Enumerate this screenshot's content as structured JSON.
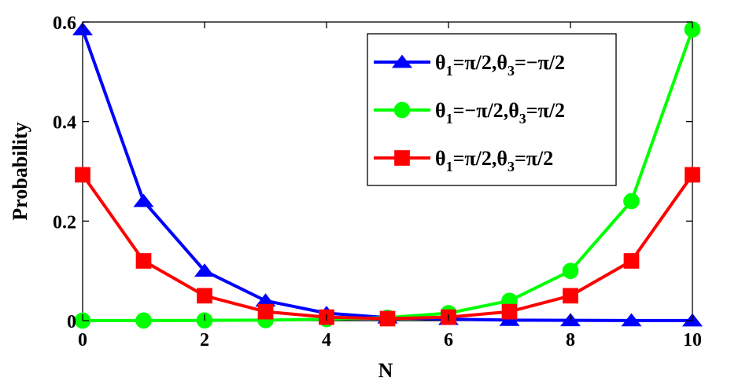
{
  "chart_data": {
    "type": "line",
    "title": "",
    "xlabel": "N",
    "ylabel": "Probability",
    "xlim": [
      0,
      10
    ],
    "ylim": [
      0,
      0.6
    ],
    "xticks": [
      "0",
      "2",
      "4",
      "6",
      "8",
      "10"
    ],
    "yticks": [
      "0",
      "0.2",
      "0.4",
      "0.6"
    ],
    "x": [
      0,
      1,
      2,
      3,
      4,
      5,
      6,
      7,
      8,
      9,
      10
    ],
    "grid": false,
    "legend_position": "top-right",
    "series": [
      {
        "name": "θ1=π/2,θ3=−π/2",
        "legend": {
          "theta": "θ",
          "sub1": "1",
          "mid": "=π/2,",
          "sub3": "3",
          "tail": "=−π/2"
        },
        "color": "#0000ff",
        "marker": "triangle",
        "values": [
          0.585,
          0.24,
          0.1,
          0.04,
          0.015,
          0.006,
          0.003,
          0.001,
          0.0005,
          0.0002,
          0.0001
        ]
      },
      {
        "name": "θ1=−π/2,θ3=π/2",
        "legend": {
          "theta": "θ",
          "sub1": "1",
          "mid": "=−π/2,",
          "sub3": "3",
          "tail": "=π/2"
        },
        "color": "#00ff00",
        "marker": "circle",
        "values": [
          0.0001,
          0.0002,
          0.0005,
          0.001,
          0.003,
          0.006,
          0.015,
          0.04,
          0.1,
          0.24,
          0.585
        ]
      },
      {
        "name": "θ1=π/2,θ3=π/2",
        "legend": {
          "theta": "θ",
          "sub1": "1",
          "mid": "=π/2,",
          "sub3": "3",
          "tail": "=π/2"
        },
        "color": "#ff0000",
        "marker": "square",
        "values": [
          0.293,
          0.12,
          0.05,
          0.018,
          0.007,
          0.004,
          0.007,
          0.018,
          0.05,
          0.12,
          0.293
        ]
      }
    ]
  }
}
